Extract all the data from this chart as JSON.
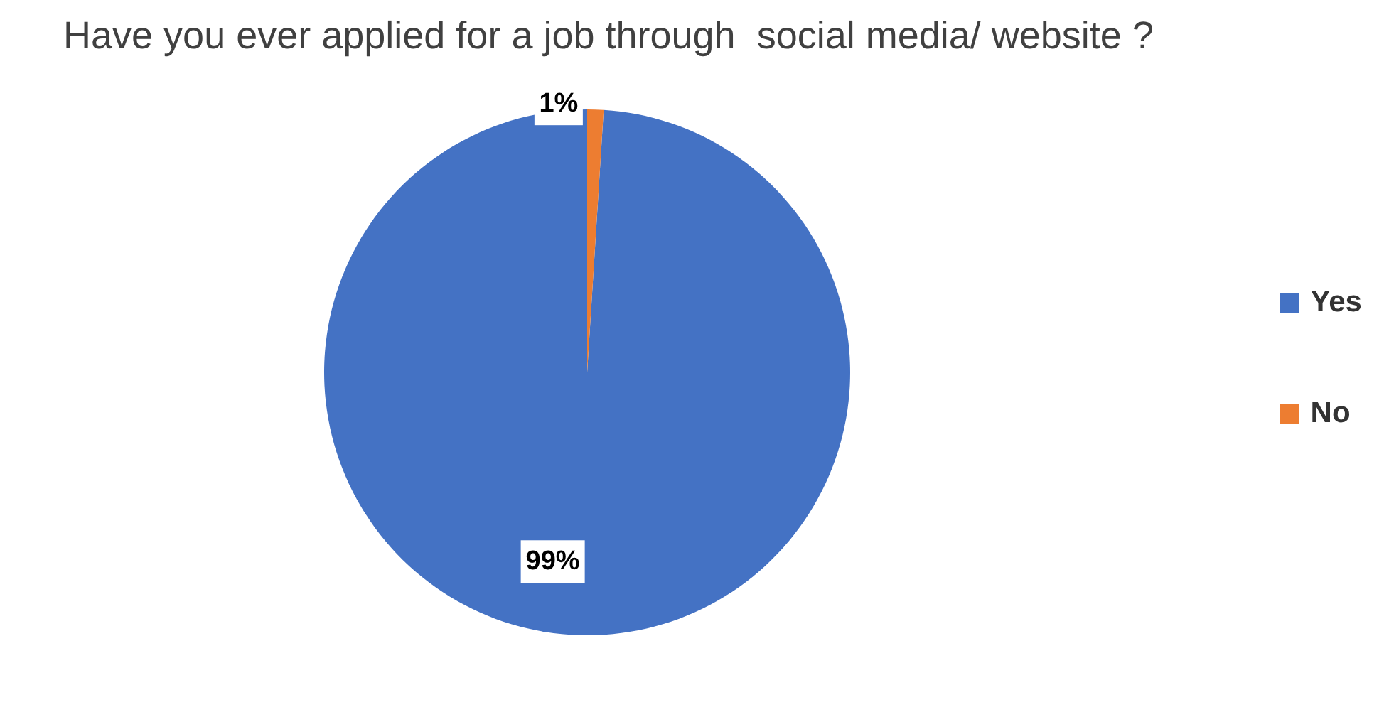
{
  "chart_data": {
    "type": "pie",
    "title": "Have you ever applied for a job through  social media/ website ?",
    "categories": [
      "Yes",
      "No"
    ],
    "values": [
      99,
      1
    ],
    "colors": [
      "#4472c4",
      "#ed7d31"
    ],
    "value_labels": [
      "99%",
      "1%"
    ],
    "legend": "right"
  }
}
